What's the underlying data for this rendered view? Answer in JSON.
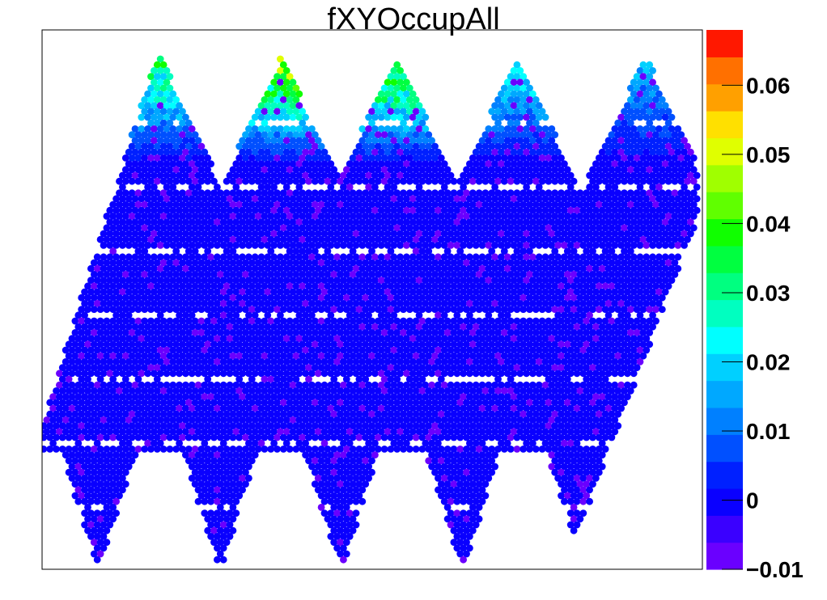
{
  "chart_data": {
    "type": "heatmap",
    "title": "fXYOccupAll",
    "xlabel": "",
    "ylabel": "",
    "color_scale": {
      "min": -0.01,
      "max": 0.068,
      "levels": 20,
      "tick_values": [
        -0.01,
        0,
        0.01,
        0.02,
        0.03,
        0.04,
        0.05,
        0.06
      ],
      "tick_labels": [
        "−0.01",
        "0",
        "0.01",
        "0.02",
        "0.03",
        "0.04",
        "0.05",
        "0.06"
      ],
      "palette": [
        "#6a00ff",
        "#3a00ff",
        "#0a00ff",
        "#0020ff",
        "#0050ff",
        "#0080ff",
        "#00a8ff",
        "#00d0ff",
        "#00ffff",
        "#00ffc0",
        "#00ff80",
        "#00ff40",
        "#10ff00",
        "#60ff00",
        "#a0ff00",
        "#e0ff00",
        "#ffe000",
        "#ffa000",
        "#ff7000",
        "#ff1800"
      ]
    },
    "background_value": -0.0005,
    "low_value": -0.008,
    "hotspots": [
      {
        "region": "top of diamond column 1",
        "value": 0.033
      },
      {
        "region": "top of diamond column 2",
        "value": 0.047
      },
      {
        "region": "top of diamond column 3",
        "value": 0.044
      },
      {
        "region": "top of diamond column 4",
        "value": 0.026
      },
      {
        "region": "top of diamond column 5",
        "value": 0.018
      }
    ],
    "grid": false,
    "legend": "color bar on the right"
  }
}
